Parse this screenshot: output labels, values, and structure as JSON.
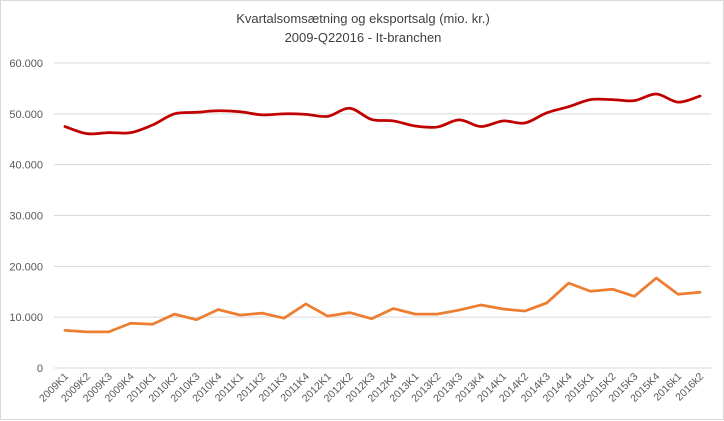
{
  "chart_data": {
    "type": "line",
    "title": "Kvartalsomsætning og eksportsalg (mio. kr.)",
    "subtitle": "2009-Q22016 - It-branchen",
    "xlabel": "",
    "ylabel": "",
    "ylim": [
      0,
      60000
    ],
    "yticks": [
      0,
      10000,
      20000,
      30000,
      40000,
      50000,
      60000
    ],
    "ytick_labels": [
      "0",
      "10.000",
      "20.000",
      "30.000",
      "40.000",
      "50.000",
      "60.000"
    ],
    "grid": true,
    "legend": "none",
    "categories": [
      "2009K1",
      "2009K2",
      "2009K3",
      "2009K4",
      "2010K1",
      "2010K2",
      "2010K3",
      "2010K4",
      "2011K1",
      "2011K2",
      "2011K3",
      "2011K4",
      "2012K1",
      "2012K2",
      "2012K3",
      "2012K4",
      "2013K1",
      "2013K2",
      "2013K3",
      "2013K4",
      "2014K1",
      "2014K2",
      "2014K3",
      "2014K4",
      "2015K1",
      "2015K2",
      "2015K3",
      "2015K4",
      "2016k1",
      "2016k2"
    ],
    "series": [
      {
        "name": "Kvartalsomsætning",
        "color": "#c00000",
        "smooth": true,
        "values": [
          47500,
          46100,
          46300,
          46300,
          47800,
          50000,
          50300,
          50600,
          50400,
          49800,
          50000,
          49900,
          49500,
          51100,
          48900,
          48600,
          47600,
          47400,
          48800,
          47500,
          48600,
          48200,
          50200,
          51400,
          52800,
          52800,
          52600,
          53900,
          52300,
          53500
        ]
      },
      {
        "name": "Eksportsalg",
        "color": "#ed7d31",
        "smooth": false,
        "values": [
          7400,
          7100,
          7100,
          8800,
          8600,
          10600,
          9500,
          11500,
          10400,
          10800,
          9800,
          12600,
          10200,
          10900,
          9700,
          11700,
          10600,
          10600,
          11400,
          12400,
          11600,
          11200,
          12800,
          16700,
          15100,
          15500,
          14100,
          17700,
          14500,
          14900
        ]
      }
    ]
  }
}
